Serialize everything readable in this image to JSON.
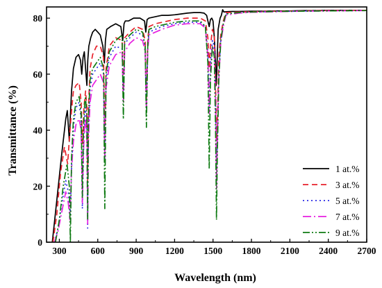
{
  "chart_data": {
    "type": "line",
    "xlabel": "Wavelength (nm)",
    "ylabel": "Transmittance (%)",
    "xlim": [
      200,
      2700
    ],
    "ylim": [
      0,
      84
    ],
    "x_ticks": [
      300,
      600,
      900,
      1200,
      1500,
      1800,
      2100,
      2400,
      2700
    ],
    "y_ticks": [
      0,
      20,
      40,
      60,
      80
    ],
    "grid": false,
    "legend_position": "bottom-right",
    "series": [
      {
        "name": "1 at.%",
        "color": "#000000",
        "dash": "solid",
        "x": [
          245,
          280,
          320,
          350,
          362,
          370,
          378,
          385,
          395,
          410,
          430,
          450,
          465,
          475,
          485,
          495,
          505,
          515,
          522,
          530,
          545,
          560,
          580,
          600,
          620,
          640,
          652,
          660,
          670,
          700,
          740,
          780,
          795,
          805,
          815,
          840,
          880,
          930,
          965,
          975,
          985,
          1000,
          1050,
          1100,
          1150,
          1200,
          1250,
          1300,
          1350,
          1400,
          1430,
          1450,
          1460,
          1470,
          1480,
          1490,
          1500,
          1510,
          1520,
          1525,
          1530,
          1540,
          1555,
          1565,
          1575,
          1585,
          1600,
          1650,
          1700,
          1800,
          1900,
          2000,
          2100,
          2200,
          2300,
          2400,
          2500,
          2600,
          2700
        ],
        "y": [
          0,
          15,
          32,
          44,
          47,
          42,
          36,
          44,
          54,
          62,
          66,
          67,
          65,
          60,
          66,
          68,
          62,
          56,
          65,
          70,
          73,
          75,
          76,
          75,
          74,
          70,
          64,
          72,
          76,
          77,
          78,
          77,
          72,
          78,
          79,
          79,
          80,
          80,
          79,
          75,
          79.5,
          80,
          80.5,
          81,
          81,
          81.2,
          81.5,
          81.8,
          82,
          82,
          81.8,
          81,
          79,
          77,
          79.5,
          80,
          79,
          73,
          64,
          56,
          62,
          76,
          80,
          81,
          83,
          82.2,
          82.3,
          82.4,
          82.4,
          82.5,
          82.5,
          82.6,
          82.6,
          82.7,
          82.7,
          82.8,
          82.8,
          82.8,
          82.8
        ]
      },
      {
        "name": "3 at.%",
        "color": "#e8212b",
        "dash": "8 5",
        "x": [
          250,
          280,
          310,
          340,
          365,
          380,
          395,
          410,
          430,
          455,
          470,
          482,
          492,
          505,
          515,
          521,
          527,
          540,
          560,
          590,
          620,
          645,
          655,
          665,
          690,
          740,
          790,
          800,
          810,
          850,
          900,
          950,
          970,
          980,
          990,
          1000,
          1050,
          1100,
          1200,
          1300,
          1400,
          1440,
          1460,
          1470,
          1480,
          1495,
          1510,
          1520,
          1528,
          1535,
          1545,
          1560,
          1580,
          1600,
          1700,
          1800,
          2000,
          2200,
          2400,
          2700
        ],
        "y": [
          0,
          10,
          25,
          34,
          28,
          38,
          47,
          54,
          56,
          57,
          50,
          35,
          48,
          54,
          48,
          22,
          48,
          62,
          67,
          70,
          70,
          66,
          38,
          62,
          70,
          73,
          72,
          56,
          73,
          75,
          77,
          76,
          72,
          50,
          72,
          77,
          78,
          78.5,
          79.5,
          80,
          80,
          79,
          73,
          62,
          70,
          76,
          74,
          56,
          36,
          46,
          66,
          74,
          79,
          82,
          82.2,
          82.3,
          82.5,
          82.6,
          82.7,
          82.8
        ]
      },
      {
        "name": "5 at.%",
        "color": "#2a2ae6",
        "dash": "2 4",
        "x": [
          262,
          290,
          320,
          350,
          370,
          385,
          398,
          412,
          430,
          455,
          470,
          480,
          488,
          498,
          505,
          515,
          521,
          527,
          540,
          560,
          590,
          620,
          645,
          655,
          665,
          690,
          740,
          790,
          800,
          810,
          850,
          900,
          950,
          970,
          980,
          990,
          1000,
          1050,
          1100,
          1200,
          1300,
          1400,
          1440,
          1460,
          1470,
          1480,
          1495,
          1510,
          1520,
          1527,
          1533,
          1545,
          1560,
          1580,
          1600,
          1700,
          1800,
          2000,
          2200,
          2400,
          2700
        ],
        "y": [
          0,
          5,
          14,
          22,
          18,
          10,
          30,
          42,
          48,
          50,
          44,
          12,
          30,
          46,
          48,
          40,
          5,
          40,
          55,
          60,
          62,
          64,
          60,
          28,
          58,
          66,
          70,
          69,
          52,
          71,
          73,
          75,
          74,
          70,
          46,
          70,
          75,
          76,
          77,
          78,
          78.5,
          78.5,
          77,
          68,
          48,
          64,
          72,
          70,
          52,
          20,
          36,
          60,
          72,
          78,
          81.5,
          82,
          82.2,
          82.4,
          82.5,
          82.6,
          82.7
        ]
      },
      {
        "name": "7 at.%",
        "color": "#e61fe0",
        "dash": "12 4 2 4",
        "x": [
          262,
          290,
          320,
          350,
          370,
          382,
          395,
          410,
          430,
          455,
          470,
          480,
          488,
          498,
          505,
          515,
          521,
          527,
          540,
          560,
          590,
          620,
          645,
          655,
          665,
          690,
          740,
          790,
          800,
          810,
          850,
          900,
          950,
          970,
          980,
          990,
          1000,
          1050,
          1100,
          1200,
          1300,
          1400,
          1440,
          1460,
          1470,
          1480,
          1495,
          1510,
          1520,
          1527,
          1533,
          1545,
          1560,
          1580,
          1600,
          1700,
          1800,
          2000,
          2200,
          2400,
          2700
        ],
        "y": [
          0,
          4,
          11,
          18,
          14,
          8,
          26,
          36,
          42,
          44,
          40,
          14,
          32,
          42,
          44,
          36,
          6,
          36,
          50,
          56,
          58,
          60,
          57,
          30,
          55,
          63,
          67,
          68,
          50,
          68,
          71,
          73,
          72,
          68,
          47,
          68,
          74,
          75,
          76,
          77.5,
          78,
          78,
          76.5,
          66,
          46,
          62,
          70,
          68,
          50,
          19,
          35,
          58,
          71,
          77,
          81,
          81.8,
          82.1,
          82.3,
          82.5,
          82.6,
          82.7
        ]
      },
      {
        "name": "9 at.%",
        "color": "#0e7a12",
        "dash": "10 3 2 3 2 3",
        "x": [
          270,
          300,
          330,
          360,
          378,
          386,
          395,
          410,
          430,
          455,
          470,
          480,
          488,
          498,
          505,
          515,
          521,
          527,
          540,
          560,
          590,
          620,
          645,
          655,
          665,
          690,
          740,
          790,
          800,
          810,
          850,
          900,
          950,
          970,
          980,
          990,
          1000,
          1050,
          1100,
          1200,
          1300,
          1400,
          1440,
          1460,
          1470,
          1480,
          1495,
          1510,
          1520,
          1527,
          1533,
          1545,
          1560,
          1580,
          1600,
          1700,
          1800,
          2000,
          2200,
          2400,
          2700
        ],
        "y": [
          0,
          8,
          20,
          28,
          20,
          0,
          30,
          44,
          50,
          52,
          46,
          16,
          40,
          50,
          52,
          44,
          8,
          44,
          58,
          62,
          64,
          66,
          62,
          12,
          60,
          68,
          72,
          74,
          44,
          72,
          74,
          76,
          75,
          70,
          41,
          70,
          76,
          77,
          77.5,
          78.5,
          79,
          79,
          77,
          64,
          26,
          58,
          70,
          66,
          40,
          8,
          30,
          58,
          72,
          78,
          81.5,
          82,
          82.2,
          82.4,
          82.5,
          82.6,
          82.7
        ]
      }
    ]
  }
}
